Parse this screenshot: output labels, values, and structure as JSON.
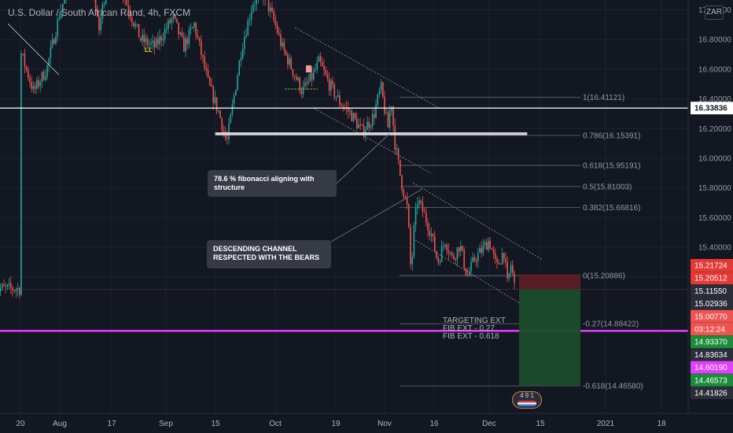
{
  "header": {
    "title": "U.S. Dollar / South African Rand, 4h, FXCM",
    "currency": "ZAR",
    "marker_label": "LL"
  },
  "colors": {
    "background": "#131722",
    "grid": "#1e222d",
    "up_candle": "#26a69a",
    "down_candle": "#ef5350",
    "support_line": "#ffffff",
    "magenta_line": "#e040fb",
    "stop_zone": "#5b1f27",
    "target_zone": "#1b4d2c"
  },
  "annotations": {
    "fib_structure": "78.6 % fibonacci aligning with structure",
    "channel": "DESCENDING CHANNEL RESPECTED WITH THE BEARS",
    "targets": "TARGETING EXT\nFIB EXT - 0.27\nFIB EXT - 0.618",
    "event_badge": "4 9 1"
  },
  "chart_data": {
    "type": "candlestick",
    "title": "U.S. Dollar / South African Rand, 4h, FXCM",
    "ylim": [
      14.3,
      17.1
    ],
    "y_ticks": [
      "17.00000",
      "16.80000",
      "16.60000",
      "16.40000",
      "16.20000",
      "16.00000",
      "15.80000",
      "15.60000",
      "15.40000",
      "15.20000"
    ],
    "y_tick_values": [
      17.0,
      16.8,
      16.6,
      16.4,
      16.2,
      16.0,
      15.8,
      15.6,
      15.4,
      15.2
    ],
    "x_ticks": [
      {
        "label": "20",
        "date": "2020-07-20"
      },
      {
        "label": "Aug",
        "date": "2020-08-01"
      },
      {
        "label": "17",
        "date": "2020-08-17"
      },
      {
        "label": "Sep",
        "date": "2020-09-01"
      },
      {
        "label": "15",
        "date": "2020-09-15"
      },
      {
        "label": "Oct",
        "date": "2020-10-01"
      },
      {
        "label": "19",
        "date": "2020-10-19"
      },
      {
        "label": "Nov",
        "date": "2020-11-01"
      },
      {
        "label": "16",
        "date": "2020-11-16"
      },
      {
        "label": "Dec",
        "date": "2020-12-01"
      },
      {
        "label": "15",
        "date": "2020-12-15"
      },
      {
        "label": "2021",
        "date": "2021-01-01"
      },
      {
        "label": "18",
        "date": "2021-01-18"
      }
    ],
    "price_path": [
      {
        "date": "2020-07-20",
        "price": 16.72
      },
      {
        "date": "2020-07-24",
        "price": 16.45
      },
      {
        "date": "2020-07-28",
        "price": 16.6
      },
      {
        "date": "2020-08-01",
        "price": 16.98
      },
      {
        "date": "2020-08-05",
        "price": 17.25
      },
      {
        "date": "2020-08-10",
        "price": 17.35
      },
      {
        "date": "2020-08-13",
        "price": 16.85
      },
      {
        "date": "2020-08-17",
        "price": 17.4
      },
      {
        "date": "2020-08-21",
        "price": 17.05
      },
      {
        "date": "2020-08-25",
        "price": 16.8
      },
      {
        "date": "2020-08-29",
        "price": 16.75
      },
      {
        "date": "2020-09-03",
        "price": 16.95
      },
      {
        "date": "2020-09-06",
        "price": 16.75
      },
      {
        "date": "2020-09-09",
        "price": 16.9
      },
      {
        "date": "2020-09-13",
        "price": 16.5
      },
      {
        "date": "2020-09-16",
        "price": 16.3
      },
      {
        "date": "2020-09-18",
        "price": 16.1
      },
      {
        "date": "2020-09-22",
        "price": 16.75
      },
      {
        "date": "2020-09-25",
        "price": 17.05
      },
      {
        "date": "2020-09-28",
        "price": 17.1
      },
      {
        "date": "2020-10-01",
        "price": 16.9
      },
      {
        "date": "2020-10-03",
        "price": 16.75
      },
      {
        "date": "2020-10-06",
        "price": 16.6
      },
      {
        "date": "2020-10-09",
        "price": 16.45
      },
      {
        "date": "2020-10-12",
        "price": 16.55
      },
      {
        "date": "2020-10-14",
        "price": 16.65
      },
      {
        "date": "2020-10-17",
        "price": 16.5
      },
      {
        "date": "2020-10-20",
        "price": 16.38
      },
      {
        "date": "2020-10-23",
        "price": 16.3
      },
      {
        "date": "2020-10-26",
        "price": 16.18
      },
      {
        "date": "2020-10-29",
        "price": 16.28
      },
      {
        "date": "2020-10-31",
        "price": 16.48
      },
      {
        "date": "2020-11-02",
        "price": 16.2
      },
      {
        "date": "2020-11-03",
        "price": 16.4
      },
      {
        "date": "2020-11-04",
        "price": 16.12
      },
      {
        "date": "2020-11-06",
        "price": 15.85
      },
      {
        "date": "2020-11-08",
        "price": 15.65
      },
      {
        "date": "2020-11-09",
        "price": 15.22
      },
      {
        "date": "2020-11-10",
        "price": 15.55
      },
      {
        "date": "2020-11-11",
        "price": 15.72
      },
      {
        "date": "2020-11-13",
        "price": 15.62
      },
      {
        "date": "2020-11-15",
        "price": 15.5
      },
      {
        "date": "2020-11-17",
        "price": 15.3
      },
      {
        "date": "2020-11-19",
        "price": 15.45
      },
      {
        "date": "2020-11-21",
        "price": 15.32
      },
      {
        "date": "2020-11-23",
        "price": 15.42
      },
      {
        "date": "2020-11-25",
        "price": 15.2
      },
      {
        "date": "2020-11-27",
        "price": 15.32
      },
      {
        "date": "2020-11-29",
        "price": 15.38
      },
      {
        "date": "2020-12-01",
        "price": 15.45
      },
      {
        "date": "2020-12-03",
        "price": 15.26
      },
      {
        "date": "2020-12-05",
        "price": 15.38
      },
      {
        "date": "2020-12-06",
        "price": 15.15
      },
      {
        "date": "2020-12-07",
        "price": 15.29
      },
      {
        "date": "2020-12-08",
        "price": 15.12
      }
    ],
    "levels": [
      {
        "name": "support",
        "value": 16.33836,
        "label": "16.33836"
      },
      {
        "name": "magenta",
        "value": 14.83634,
        "label": "14.83634"
      }
    ],
    "fibonacci": [
      {
        "label": "1(16.41121)",
        "value": 16.41121
      },
      {
        "label": "0.786(16.15391)",
        "value": 16.15391
      },
      {
        "label": "0.618(15.95191)",
        "value": 15.95191
      },
      {
        "label": "0.5(15.81003)",
        "value": 15.81003
      },
      {
        "label": "0.382(15.66816)",
        "value": 15.66816
      },
      {
        "label": "0(15.20886)",
        "value": 15.20886
      },
      {
        "label": "-0.27(14.88422)",
        "value": 14.88422
      },
      {
        "label": "-0.618(14.46580)",
        "value": 14.4658
      }
    ],
    "position": {
      "stop": 15.21724,
      "entry": 15.1155,
      "target": 14.4658
    },
    "price_labels": [
      {
        "text": "15.21724",
        "value": 15.21724,
        "color": "#e53935"
      },
      {
        "text": "15.20512",
        "value": 15.20512,
        "color": "#e53935"
      },
      {
        "text": "15.11550",
        "value": 15.1155,
        "color": "#2a2e39"
      },
      {
        "text": "15.02936",
        "value": 15.02936,
        "color": "#2a2e39"
      },
      {
        "text": "15.00770",
        "value": 15.0077,
        "color": "#ef5350"
      },
      {
        "text": "03:12:24",
        "value": 14.9437,
        "color": "#ef5350"
      },
      {
        "text": "14.93370",
        "value": 14.9337,
        "color": "#1b8c3a"
      },
      {
        "text": "14.83634",
        "value": 14.83634,
        "color": "#2a2e39"
      },
      {
        "text": "14.60190",
        "value": 14.6019,
        "color": "#e040fb"
      },
      {
        "text": "14.46573",
        "value": 14.46573,
        "color": "#1b8c3a"
      },
      {
        "text": "14.41826",
        "value": 14.41826,
        "color": "#2a2e39"
      }
    ]
  }
}
